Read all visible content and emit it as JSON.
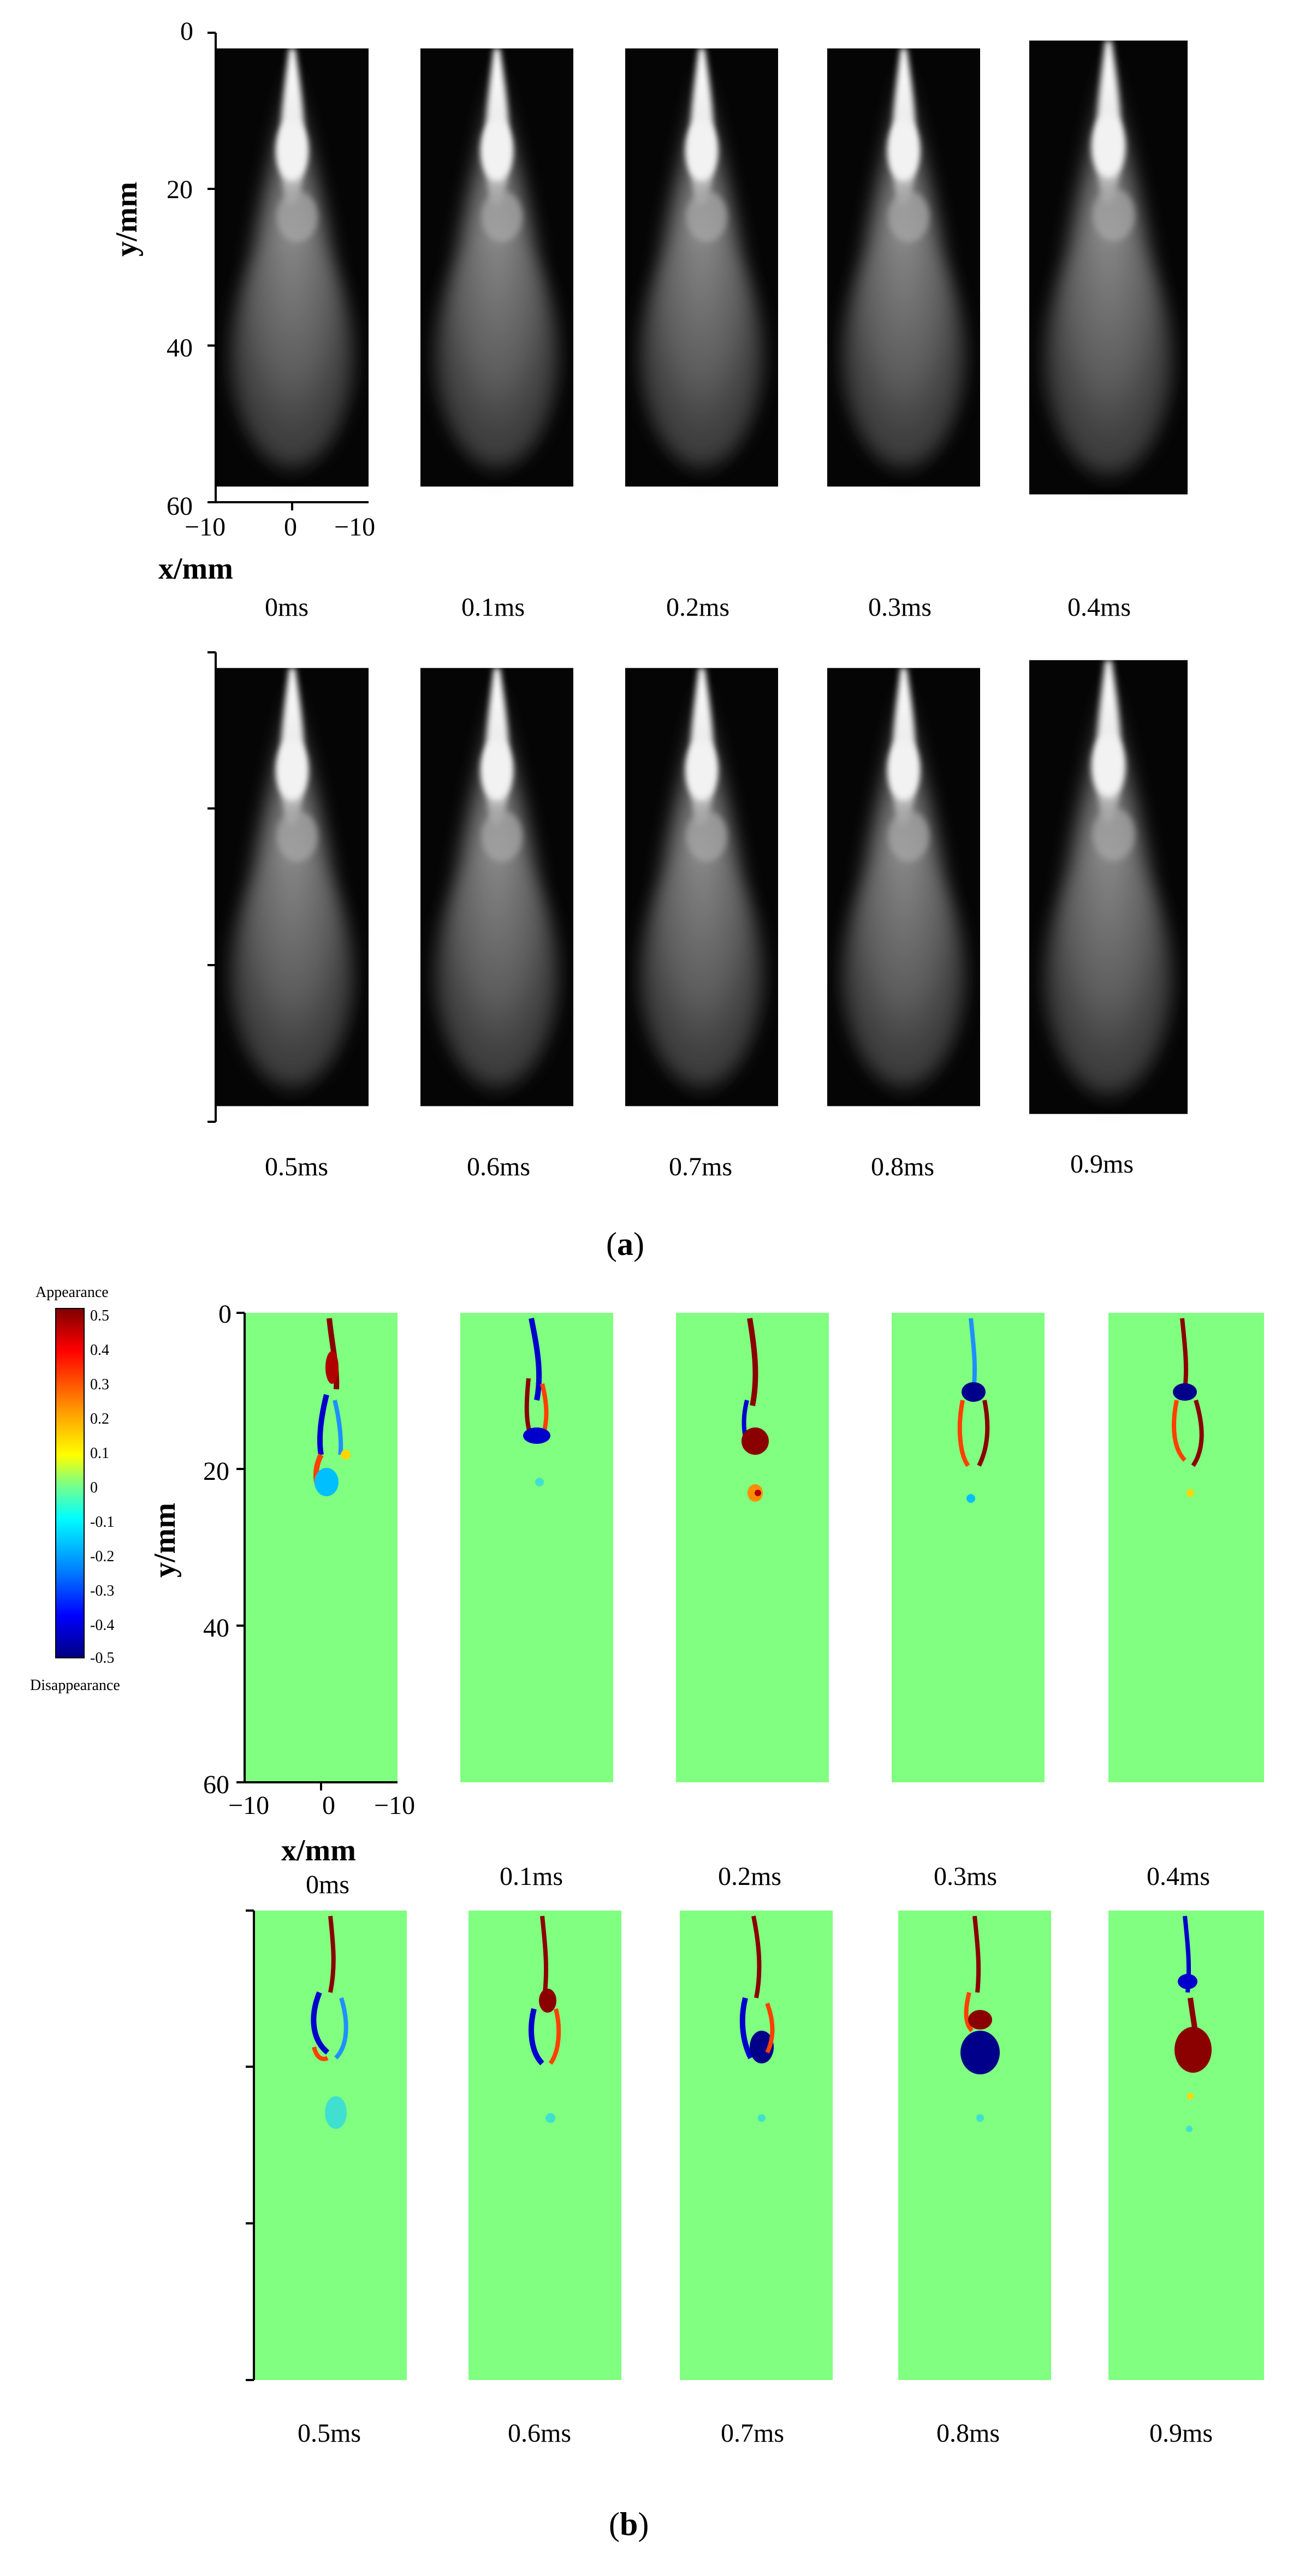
{
  "figure": {
    "panel_a": {
      "label_open": "(",
      "label": "a",
      "label_close": ")",
      "y_axis_title": "y/mm",
      "x_axis_title": "x/mm",
      "y_ticks": [
        "0",
        "20",
        "40",
        "60"
      ],
      "x_ticks": [
        "−10",
        "0",
        "−10"
      ],
      "row1_times": [
        "0ms",
        "0.1ms",
        "0.2ms",
        "0.3ms",
        "0.4ms"
      ],
      "row2_times": [
        "0.5ms",
        "0.6ms",
        "0.7ms",
        "0.8ms",
        "0.9ms"
      ]
    },
    "panel_b": {
      "label_open": "(",
      "label": "b",
      "label_close": ")",
      "y_axis_title": "y/mm",
      "x_axis_title": "x/mm",
      "y_ticks": [
        "0",
        "20",
        "40",
        "60"
      ],
      "x_ticks": [
        "−10",
        "0",
        "−10"
      ],
      "row1_times": [
        "0ms",
        "0.1ms",
        "0.2ms",
        "0.3ms",
        "0.4ms"
      ],
      "row2_times": [
        "0.5ms",
        "0.6ms",
        "0.7ms",
        "0.8ms",
        "0.9ms"
      ],
      "colorbar": {
        "top_label": "Appearance",
        "bottom_label": "Disappearance",
        "ticks": [
          "0.5",
          "0.4",
          "0.3",
          "0.2",
          "0.1",
          "0",
          "-0.1",
          "-0.2",
          "-0.3",
          "-0.4",
          "-0.5"
        ],
        "field_color": "#80ff80",
        "positive_color": "#8b0000",
        "negative_color": "#00008b"
      }
    }
  }
}
